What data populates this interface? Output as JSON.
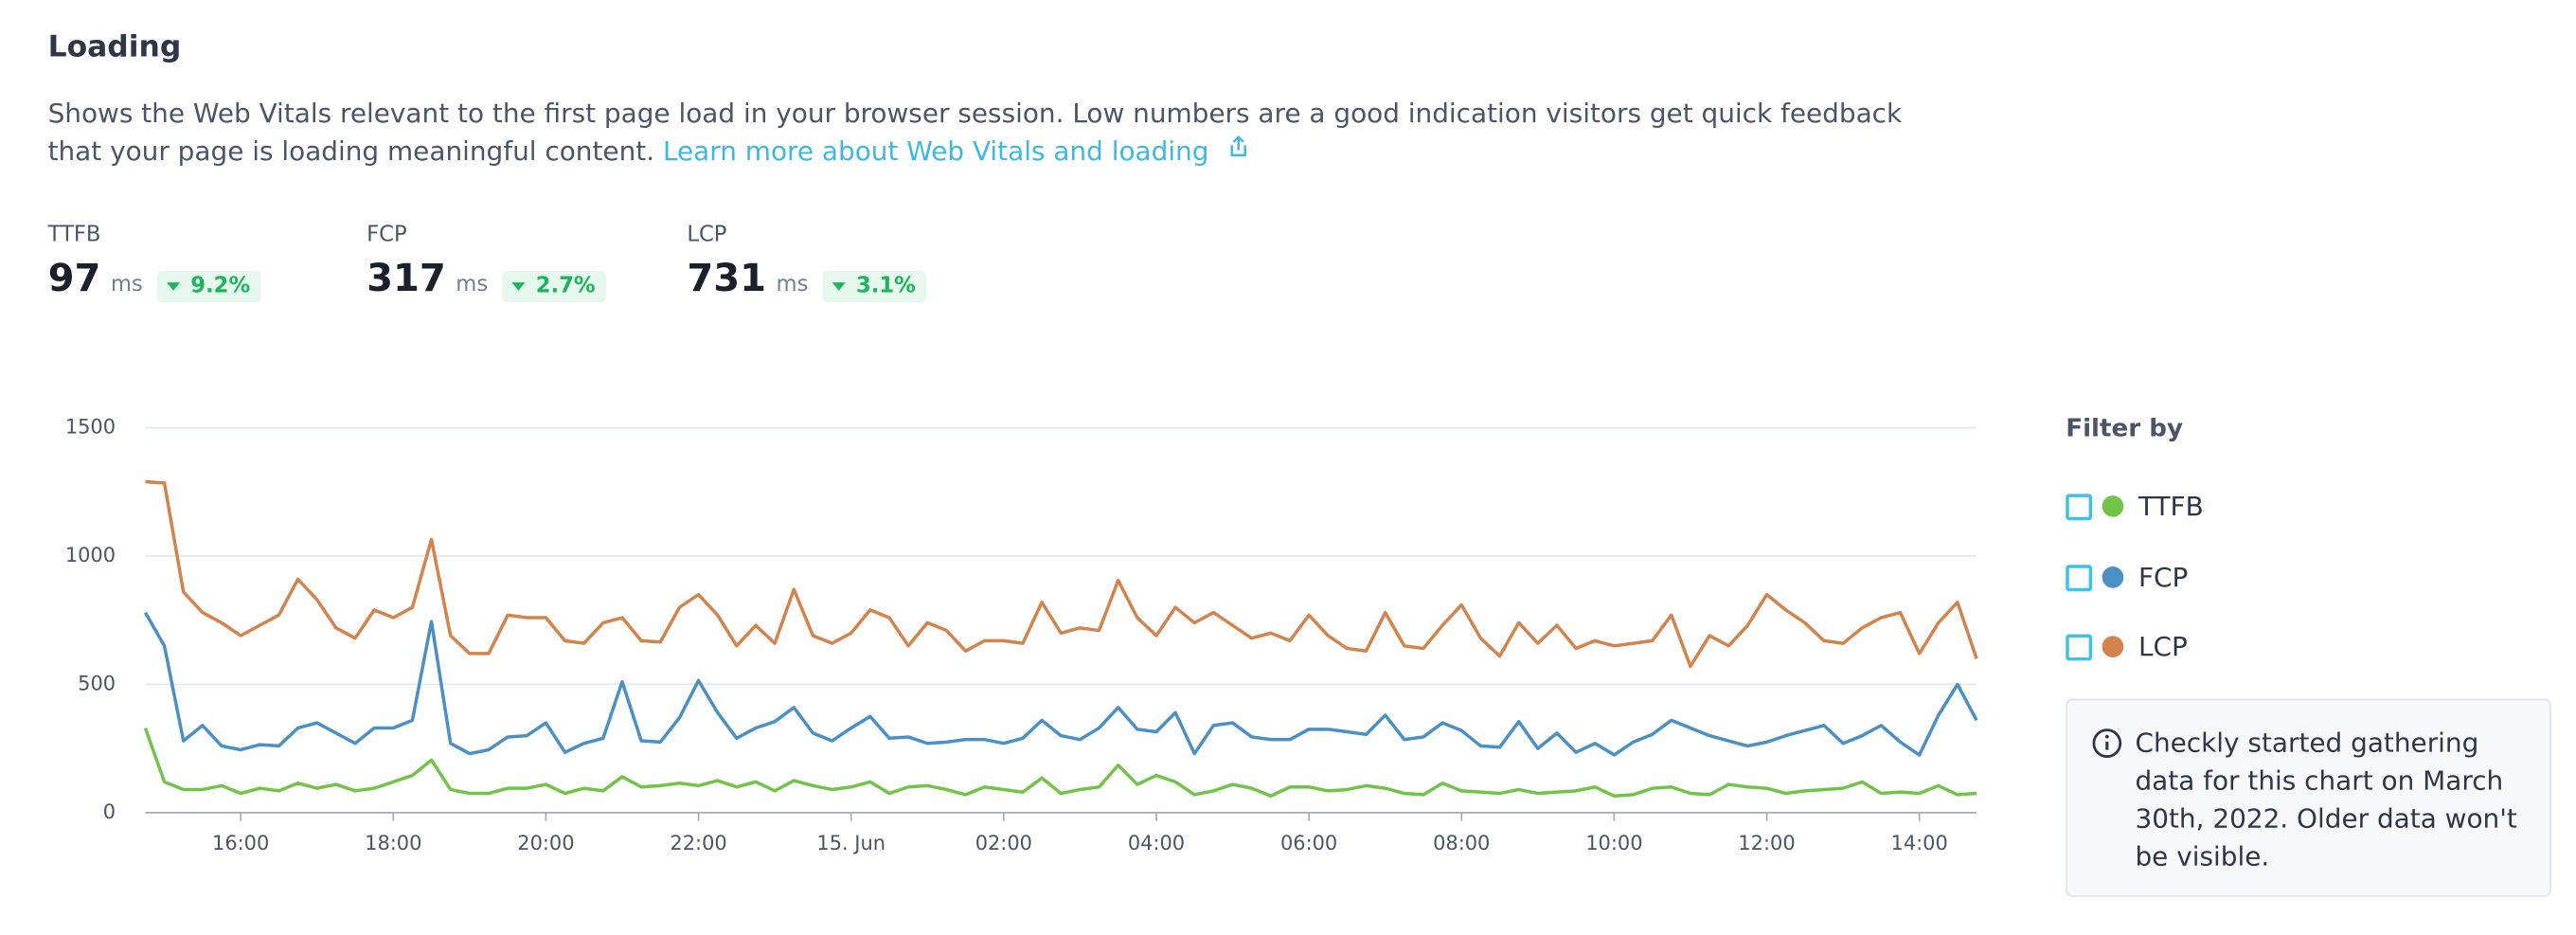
{
  "header": {
    "title": "Loading",
    "description": "Shows the Web Vitals relevant to the first page load in your browser session. Low numbers are a good indication visitors get quick feedback that your page is loading meaningful content.",
    "link": "Learn more about Web Vitals and loading"
  },
  "metrics": [
    {
      "label": "TTFB",
      "value": 97,
      "unit": "ms",
      "change": "9.2%"
    },
    {
      "label": "FCP",
      "value": 317,
      "unit": "ms",
      "change": "2.7%"
    },
    {
      "label": "LCP",
      "value": 731,
      "unit": "ms",
      "change": "3.1%"
    }
  ],
  "chart_data": {
    "type": "line",
    "legend_title": "Filter by",
    "categories": [
      null,
      null,
      null,
      null,
      null,
      "16:00",
      null,
      null,
      null,
      null,
      null,
      null,
      null,
      "18:00",
      null,
      null,
      null,
      null,
      null,
      null,
      null,
      "20:00",
      null,
      null,
      null,
      null,
      null,
      null,
      null,
      "22:00",
      null,
      null,
      null,
      null,
      null,
      null,
      null,
      "15. Jun",
      null,
      null,
      null,
      null,
      null,
      null,
      null,
      "02:00",
      null,
      null,
      null,
      null,
      null,
      null,
      null,
      "04:00",
      null,
      null,
      null,
      null,
      null,
      null,
      null,
      "06:00",
      null,
      null,
      null,
      null,
      null,
      null,
      null,
      "08:00",
      null,
      null,
      null,
      null,
      null,
      null,
      null,
      "10:00",
      null,
      null,
      null,
      null,
      null,
      null,
      null,
      "12:00",
      null,
      null,
      null,
      null,
      null,
      null,
      null,
      "14:00",
      null,
      null,
      null
    ],
    "series": [
      {
        "name": "TTFB",
        "color": "#72c449",
        "values": [
          330,
          120,
          90,
          90,
          105,
          75,
          95,
          85,
          115,
          95,
          110,
          85,
          95,
          120,
          145,
          205,
          90,
          75,
          75,
          95,
          95,
          110,
          75,
          95,
          85,
          140,
          100,
          105,
          115,
          105,
          125,
          100,
          120,
          85,
          125,
          105,
          90,
          100,
          120,
          75,
          100,
          105,
          90,
          70,
          100,
          90,
          80,
          135,
          75,
          90,
          100,
          185,
          110,
          145,
          120,
          70,
          85,
          110,
          95,
          65,
          100,
          100,
          85,
          90,
          105,
          95,
          75,
          70,
          115,
          85,
          80,
          75,
          90,
          75,
          80,
          85,
          100,
          65,
          70,
          95,
          100,
          75,
          70,
          110,
          100,
          95,
          75,
          85,
          90,
          95,
          120,
          75,
          80,
          75,
          105,
          70,
          75
        ]
      },
      {
        "name": "FCP",
        "color": "#4a90c4",
        "values": [
          780,
          650,
          280,
          340,
          260,
          245,
          265,
          260,
          330,
          350,
          310,
          270,
          330,
          330,
          360,
          745,
          270,
          230,
          245,
          295,
          300,
          350,
          235,
          270,
          290,
          510,
          280,
          275,
          370,
          515,
          390,
          290,
          330,
          355,
          410,
          310,
          280,
          330,
          375,
          290,
          295,
          270,
          275,
          285,
          285,
          270,
          290,
          360,
          300,
          285,
          330,
          410,
          325,
          315,
          390,
          230,
          340,
          350,
          295,
          285,
          285,
          325,
          325,
          315,
          305,
          380,
          285,
          295,
          350,
          320,
          260,
          255,
          355,
          250,
          310,
          235,
          270,
          225,
          275,
          305,
          360,
          330,
          300,
          280,
          260,
          275,
          300,
          320,
          340,
          270,
          300,
          340,
          275,
          225,
          380,
          500,
          360
        ]
      },
      {
        "name": "LCP",
        "color": "#d3834c",
        "values": [
          1290,
          1285,
          860,
          780,
          740,
          690,
          730,
          770,
          910,
          830,
          720,
          680,
          790,
          760,
          800,
          1065,
          690,
          620,
          620,
          770,
          760,
          760,
          670,
          660,
          740,
          760,
          670,
          665,
          800,
          850,
          770,
          650,
          730,
          660,
          870,
          690,
          660,
          700,
          790,
          760,
          650,
          740,
          710,
          630,
          670,
          670,
          660,
          820,
          700,
          720,
          710,
          905,
          760,
          690,
          800,
          740,
          780,
          730,
          680,
          700,
          670,
          770,
          690,
          640,
          630,
          780,
          650,
          640,
          730,
          810,
          680,
          610,
          740,
          660,
          730,
          640,
          670,
          650,
          660,
          670,
          770,
          570,
          690,
          650,
          730,
          850,
          790,
          740,
          670,
          660,
          720,
          760,
          780,
          620,
          740,
          820,
          600
        ]
      }
    ],
    "ylim": [
      0,
      1500
    ],
    "yticks": [
      0,
      500,
      1000,
      1500
    ],
    "grid": true,
    "legend_position": "right"
  },
  "info_note": "Checkly started gathering data for this chart on March 30th, 2022. Older data won't be visible."
}
